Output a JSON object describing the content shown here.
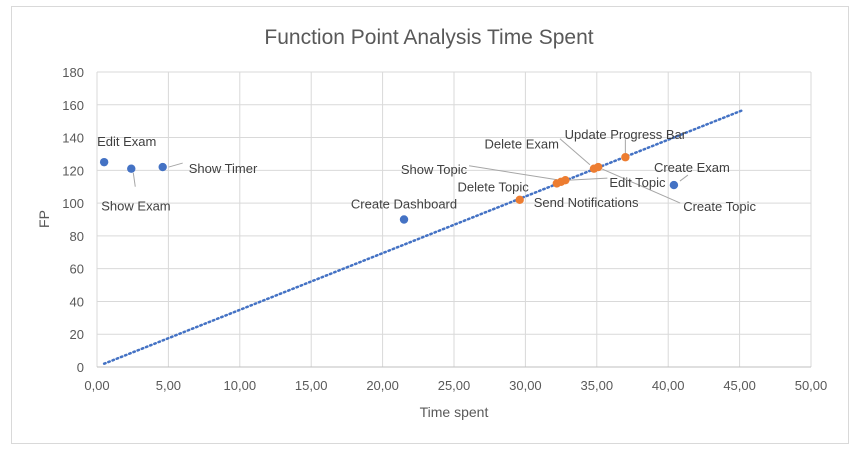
{
  "chart_data": {
    "type": "scatter",
    "title": "Function Point Analysis Time Spent",
    "xlabel": "Time spent",
    "ylabel": "FP",
    "xlim": [
      0,
      50
    ],
    "ylim": [
      0,
      180
    ],
    "x_ticks": [
      "0,00",
      "5,00",
      "10,00",
      "15,00",
      "20,00",
      "25,00",
      "30,00",
      "35,00",
      "40,00",
      "45,00",
      "50,00"
    ],
    "y_ticks": [
      "0",
      "20",
      "40",
      "60",
      "80",
      "100",
      "120",
      "140",
      "160",
      "180"
    ],
    "grid": true,
    "series": [
      {
        "color": "#4472c4",
        "points": [
          {
            "label": "Edit Exam",
            "x": 0.5,
            "y": 125
          },
          {
            "label": "Show Exam",
            "x": 2.4,
            "y": 121
          },
          {
            "label": "Show Timer",
            "x": 4.6,
            "y": 122
          },
          {
            "label": "Create Dashboard",
            "x": 21.5,
            "y": 90
          },
          {
            "label": "Create Exam",
            "x": 40.4,
            "y": 111
          }
        ]
      },
      {
        "color": "#ed7d31",
        "points": [
          {
            "label": "Send Notifications",
            "x": 29.6,
            "y": 102
          },
          {
            "label": "Delete Topic",
            "x": 32.2,
            "y": 112
          },
          {
            "label": "Show Topic",
            "x": 32.5,
            "y": 113
          },
          {
            "label": "Edit Topic",
            "x": 32.8,
            "y": 114
          },
          {
            "label": "Delete Exam",
            "x": 34.8,
            "y": 121
          },
          {
            "label": "Create Topic",
            "x": 35.1,
            "y": 122
          },
          {
            "label": "Update Progress Bar",
            "x": 37.0,
            "y": 128
          }
        ]
      }
    ],
    "trendline": {
      "style": "dotted",
      "color": "#4472c4",
      "from": [
        0.5,
        2
      ],
      "to": [
        45.3,
        157
      ]
    }
  }
}
